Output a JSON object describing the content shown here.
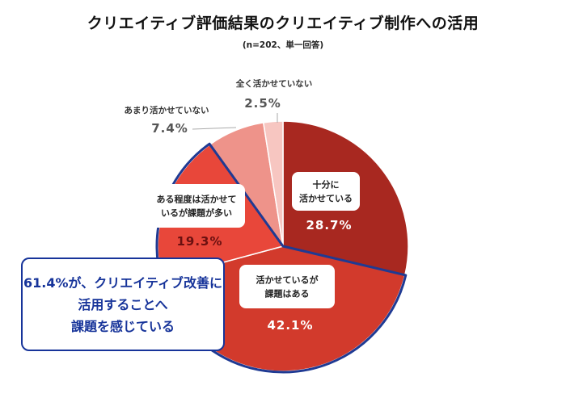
{
  "title": "クリエイティブ評価結果のクリエイティブ制作への活用",
  "subtitle": "(n=202、単一回答)",
  "callout": {
    "lines": [
      "61.4%が、クリエイティブ改善に",
      "活用することへ",
      "課題を感じている"
    ]
  },
  "colors": {
    "callout_border": "#17349a",
    "highlight_outline": "#1f3a93"
  },
  "chart_data": {
    "type": "pie",
    "title": "クリエイティブ評価結果のクリエイティブ制作への活用",
    "subtitle": "(n=202、単一回答)",
    "unit": "%",
    "slices": [
      {
        "label": "十分に活かせている",
        "label_lines": [
          "十分に",
          "活かせている"
        ],
        "value": 28.7,
        "value_text": "28.7%",
        "color": "#a82820"
      },
      {
        "label": "活かせているが課題はある",
        "label_lines": [
          "活かせているが",
          "課題はある"
        ],
        "value": 42.1,
        "value_text": "42.1%",
        "color": "#d23a2c"
      },
      {
        "label": "ある程度は活かせているが課題が多い",
        "label_lines": [
          "ある程度は活かせて",
          "いるが課題が多い"
        ],
        "value": 19.3,
        "value_text": "19.3%",
        "color": "#e8473a"
      },
      {
        "label": "あまり活かせていない",
        "label_lines": [
          "あまり活かせていない"
        ],
        "value": 7.4,
        "value_text": "7.4%",
        "color": "#ee938a"
      },
      {
        "label": "全く活かせていない",
        "label_lines": [
          "全く活かせていない"
        ],
        "value": 2.5,
        "value_text": "2.5%",
        "color": "#f7c6c1"
      }
    ],
    "highlighted_slices": [
      "活かせているが課題はある",
      "ある程度は活かせているが課題が多い"
    ],
    "start_angle": "12 o'clock",
    "direction": "clockwise",
    "legend": "none"
  }
}
